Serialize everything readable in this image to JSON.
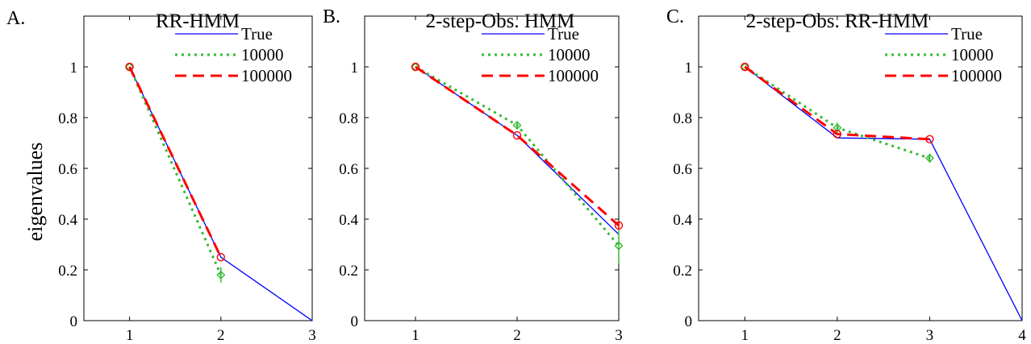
{
  "ylabel": "eigenvalues",
  "colors": {
    "true": "#0000ff",
    "s10000": "#33bb33",
    "s100000": "#ff0000",
    "axis": "#000000"
  },
  "chart_data": [
    {
      "type": "line",
      "panel_label": "A.",
      "title": "RR-HMM",
      "xlim": [
        0.5,
        3.0
      ],
      "ylim": [
        0,
        1.2
      ],
      "xticks": [
        "1",
        "2",
        "3"
      ],
      "yticks": [
        "0",
        "0.2",
        "0.4",
        "0.6",
        "0.8",
        "1"
      ],
      "legend": [
        "True",
        "10000",
        "100000"
      ],
      "series": [
        {
          "name": "True",
          "x": [
            1,
            2,
            3
          ],
          "y": [
            1.0,
            0.25,
            0.0
          ]
        },
        {
          "name": "10000",
          "x": [
            1,
            2
          ],
          "y": [
            1.0,
            0.18
          ],
          "err": [
            0.0,
            0.03
          ]
        },
        {
          "name": "100000",
          "x": [
            1,
            2
          ],
          "y": [
            1.0,
            0.25
          ],
          "err": [
            0.0,
            0.0
          ]
        }
      ]
    },
    {
      "type": "line",
      "panel_label": "B.",
      "title": "2-step-Obs. HMM",
      "xlim": [
        0.5,
        3.0
      ],
      "ylim": [
        0,
        1.2
      ],
      "xticks": [
        "1",
        "2",
        "3"
      ],
      "yticks": [
        "0",
        "0.2",
        "0.4",
        "0.6",
        "0.8",
        "1"
      ],
      "legend": [
        "True",
        "10000",
        "100000"
      ],
      "series": [
        {
          "name": "True",
          "x": [
            1,
            2,
            3
          ],
          "y": [
            1.0,
            0.73,
            0.34
          ]
        },
        {
          "name": "10000",
          "x": [
            1,
            2,
            3
          ],
          "y": [
            1.0,
            0.77,
            0.295
          ],
          "err": [
            0.0,
            0.012,
            0.07
          ]
        },
        {
          "name": "100000",
          "x": [
            1,
            2,
            3
          ],
          "y": [
            1.0,
            0.73,
            0.375
          ],
          "err": [
            0.0,
            0.0,
            0.012
          ]
        }
      ]
    },
    {
      "type": "line",
      "panel_label": "C.",
      "title": "2-step-Obs. RR-HMM",
      "xlim": [
        0.5,
        4.0
      ],
      "ylim": [
        0,
        1.2
      ],
      "xticks": [
        "1",
        "2",
        "3",
        "4"
      ],
      "yticks": [
        "0",
        "0.2",
        "0.4",
        "0.6",
        "0.8",
        "1"
      ],
      "legend": [
        "True",
        "10000",
        "100000"
      ],
      "series": [
        {
          "name": "True",
          "x": [
            1,
            2,
            3,
            4
          ],
          "y": [
            1.0,
            0.72,
            0.715,
            0.0
          ]
        },
        {
          "name": "10000",
          "x": [
            1,
            2,
            3
          ],
          "y": [
            1.0,
            0.76,
            0.64
          ],
          "err": [
            0.0,
            0.02,
            0.018
          ]
        },
        {
          "name": "100000",
          "x": [
            1,
            2,
            3
          ],
          "y": [
            1.0,
            0.735,
            0.715
          ],
          "err": [
            0.0,
            0.0,
            0.0
          ]
        }
      ]
    }
  ]
}
